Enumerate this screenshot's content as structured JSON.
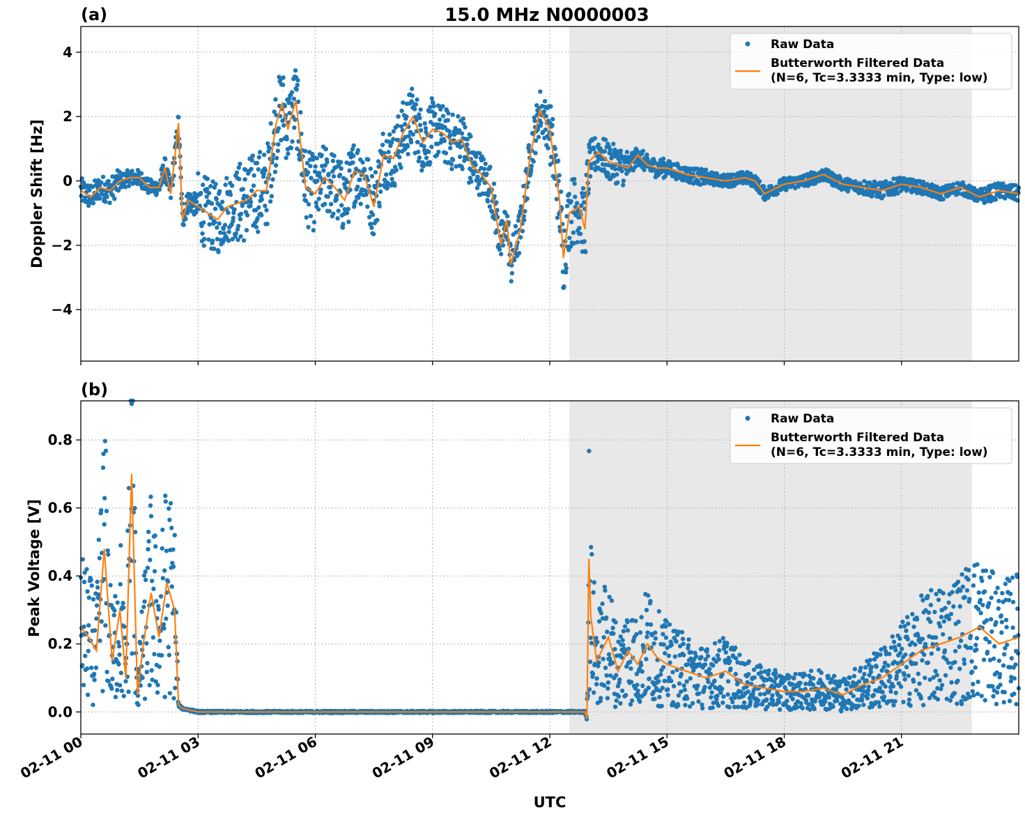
{
  "title": "15.0 MHz N0000003",
  "colors": {
    "raw": "#1f77b4",
    "filtered": "#ff7f0e",
    "shade": "#e8e8e8",
    "grid": "#b0b0b0"
  },
  "xlabel": "UTC",
  "x_tick_labels": [
    "02-11 00",
    "02-11 03",
    "02-11 06",
    "02-11 09",
    "02-11 12",
    "02-11 15",
    "02-11 18",
    "02-11 21"
  ],
  "chart_data": [
    {
      "type": "scatter",
      "panel_label": "(a)",
      "ylabel": "Doppler Shift [Hz]",
      "xlim_hours": [
        0,
        24
      ],
      "ylim": [
        -5.6,
        4.8
      ],
      "y_ticks": [
        4,
        2,
        0,
        -2,
        -4
      ],
      "y_tick_labels": [
        "4",
        "2",
        "0",
        "−2",
        "−4"
      ],
      "grid": true,
      "shaded_hours": [
        12.5,
        22.8
      ],
      "legend": {
        "placement": "upper-right",
        "raw": "Raw Data",
        "filtered_line1": "Butterworth Filtered Data",
        "filtered_line2": "(N=6, Tc=3.3333 min, Type: low)"
      },
      "series": [
        {
          "name": "Butterworth Filtered Data",
          "x_hours": [
            0,
            0.25,
            0.5,
            0.75,
            1.0,
            1.25,
            1.5,
            1.75,
            2.0,
            2.15,
            2.3,
            2.5,
            2.6,
            2.75,
            3.0,
            3.25,
            3.5,
            3.75,
            4.0,
            4.25,
            4.5,
            4.75,
            5.0,
            5.15,
            5.3,
            5.5,
            5.75,
            6.0,
            6.25,
            6.5,
            6.75,
            7.0,
            7.25,
            7.5,
            7.75,
            8.0,
            8.25,
            8.5,
            8.75,
            9.0,
            9.25,
            9.5,
            9.75,
            10.0,
            10.25,
            10.5,
            10.75,
            10.9,
            11.0,
            11.25,
            11.5,
            11.75,
            12.0,
            12.25,
            12.35,
            12.5,
            12.75,
            12.9,
            13.0,
            13.25,
            13.5,
            13.75,
            14.0,
            14.25,
            14.5,
            14.75,
            15.0,
            15.5,
            16.0,
            16.5,
            17.0,
            17.25,
            17.5,
            18.0,
            18.5,
            19.0,
            19.5,
            20.0,
            20.5,
            21.0,
            21.5,
            22.0,
            22.5,
            23.0,
            23.5,
            24.0
          ],
          "y": [
            -0.3,
            -0.5,
            -0.2,
            -0.3,
            0.0,
            0.1,
            0.1,
            -0.2,
            -0.2,
            0.4,
            -0.4,
            1.8,
            -1.2,
            -0.6,
            -0.8,
            -1.0,
            -1.2,
            -0.8,
            -0.7,
            -0.6,
            -0.3,
            -0.3,
            1.8,
            2.4,
            1.6,
            2.5,
            -0.2,
            -0.4,
            0.1,
            -0.2,
            -0.6,
            0.3,
            0.2,
            -0.8,
            0.8,
            0.7,
            1.5,
            2.0,
            1.2,
            1.6,
            1.5,
            1.2,
            1.3,
            0.5,
            0.2,
            -0.2,
            -2.0,
            -1.2,
            -2.6,
            -1.5,
            0.8,
            2.2,
            1.6,
            -0.6,
            -2.4,
            -1.0,
            -0.8,
            -1.5,
            0.6,
            0.9,
            0.6,
            0.5,
            0.4,
            0.8,
            0.5,
            0.4,
            0.4,
            0.2,
            0.1,
            0.0,
            0.1,
            0.0,
            -0.4,
            -0.1,
            0.0,
            0.2,
            -0.1,
            -0.2,
            -0.3,
            -0.1,
            -0.2,
            -0.4,
            -0.2,
            -0.5,
            -0.3,
            -0.4
          ]
        }
      ]
    },
    {
      "type": "scatter",
      "panel_label": "(b)",
      "ylabel": "Peak Voltage [V]",
      "xlim_hours": [
        0,
        24
      ],
      "ylim": [
        -0.065,
        0.915
      ],
      "y_ticks": [
        0.8,
        0.6,
        0.4,
        0.2,
        0.0
      ],
      "y_tick_labels": [
        "0.8",
        "0.6",
        "0.4",
        "0.2",
        "0.0"
      ],
      "grid": true,
      "shaded_hours": [
        12.5,
        22.8
      ],
      "legend": {
        "placement": "upper-right",
        "raw": "Raw Data",
        "filtered_line1": "Butterworth Filtered Data",
        "filtered_line2": "(N=6, Tc=3.3333 min, Type: low)"
      },
      "series": [
        {
          "name": "Butterworth Filtered Data",
          "x_hours": [
            0,
            0.2,
            0.4,
            0.6,
            0.8,
            1.0,
            1.15,
            1.3,
            1.45,
            1.6,
            1.8,
            2.0,
            2.2,
            2.4,
            2.5,
            2.6,
            3.0,
            6.0,
            9.0,
            12.0,
            12.9,
            12.95,
            13.0,
            13.05,
            13.2,
            13.5,
            13.75,
            14.0,
            14.25,
            14.5,
            14.75,
            15.0,
            15.5,
            16.0,
            16.5,
            17.0,
            17.5,
            18.0,
            18.5,
            19.0,
            19.5,
            20.0,
            20.5,
            21.0,
            21.5,
            22.0,
            22.5,
            23.0,
            23.5,
            24.0
          ],
          "y": [
            0.25,
            0.22,
            0.18,
            0.48,
            0.15,
            0.3,
            0.1,
            0.7,
            0.05,
            0.2,
            0.35,
            0.22,
            0.38,
            0.3,
            0.02,
            0.01,
            0.0,
            0.0,
            0.0,
            0.0,
            0.0,
            -0.02,
            0.45,
            0.28,
            0.15,
            0.22,
            0.12,
            0.18,
            0.14,
            0.2,
            0.16,
            0.14,
            0.12,
            0.1,
            0.12,
            0.08,
            0.07,
            0.06,
            0.06,
            0.07,
            0.05,
            0.08,
            0.1,
            0.14,
            0.18,
            0.2,
            0.22,
            0.25,
            0.2,
            0.22
          ]
        }
      ]
    }
  ]
}
